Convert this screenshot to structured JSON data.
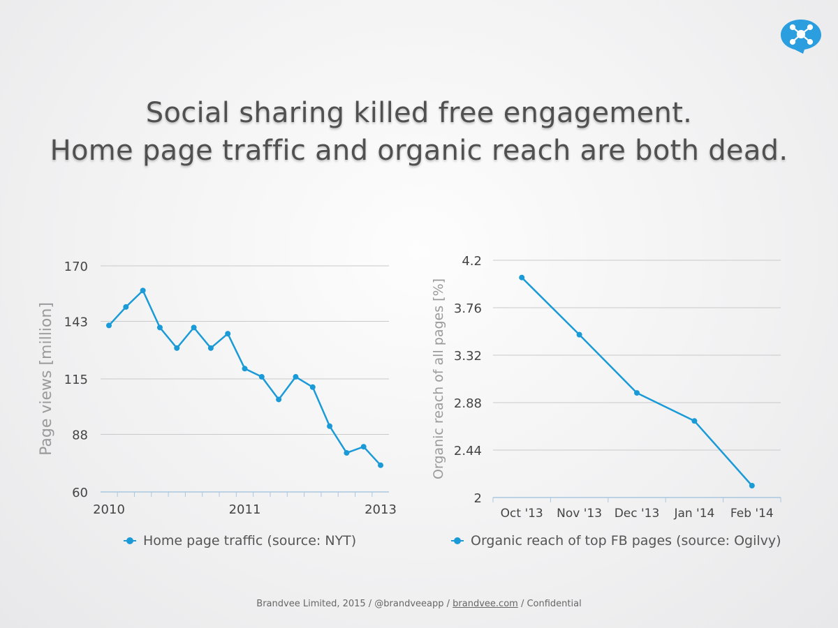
{
  "title_lines": [
    "Social sharing killed free engagement.",
    "Home page traffic and organic reach are both dead."
  ],
  "logo": {
    "icon": "network-speech-bubble-icon",
    "color": "#2b9ee0"
  },
  "colors": {
    "series": "#1a9ad6",
    "grid": "#c9c9c9",
    "axis_text": "#444444",
    "axis_label": "#9a9a9a"
  },
  "chart_data": [
    {
      "type": "line",
      "ylabel": "Page views [million]",
      "ylim": [
        60,
        170
      ],
      "yticks": [
        60,
        88,
        115,
        143,
        170
      ],
      "x_ticks": [
        "2010",
        "2011",
        "2013"
      ],
      "grid": true,
      "legend_position": "bottom",
      "series": [
        {
          "name": "Home page traffic (source: NYT)",
          "values": [
            141,
            150,
            158,
            140,
            130,
            140,
            130,
            137,
            120,
            116,
            105,
            116,
            111,
            92,
            79,
            82,
            73
          ]
        }
      ]
    },
    {
      "type": "line",
      "ylabel": "Organic reach of all pages [%]",
      "ylim": [
        2,
        4.2
      ],
      "yticks": [
        "2",
        "2.44",
        "2.88",
        "3.32",
        "3.76",
        "4.2"
      ],
      "categories": [
        "Oct '13",
        "Nov '13",
        "Dec '13",
        "Jan '14",
        "Feb '14"
      ],
      "grid": true,
      "legend_position": "bottom",
      "series": [
        {
          "name": "Organic reach of top FB pages (source: Ogilvy)",
          "values": [
            4.04,
            3.51,
            2.97,
            2.71,
            2.11
          ]
        }
      ]
    }
  ],
  "footer": {
    "part1": "Brandvee Limited, 2015 / @brandveeapp / ",
    "link": "brandvee.com",
    "part2": " / Confidential"
  }
}
